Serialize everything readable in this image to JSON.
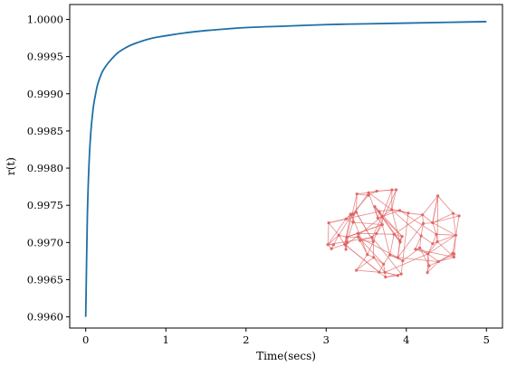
{
  "chart_data": {
    "type": "line",
    "title": "",
    "xlabel": "Time(secs)",
    "ylabel": "r(t)",
    "xlim": [
      -0.2,
      5.2
    ],
    "ylim": [
      0.99585,
      1.0002
    ],
    "x_ticks": [
      0,
      1,
      2,
      3,
      4,
      5
    ],
    "x_tick_labels": [
      "0",
      "1",
      "2",
      "3",
      "4",
      "5"
    ],
    "y_ticks": [
      0.996,
      0.9965,
      0.997,
      0.9975,
      0.998,
      0.9985,
      0.999,
      0.9995,
      1.0
    ],
    "y_tick_labels": [
      "0.9960",
      "0.9965",
      "0.9970",
      "0.9975",
      "0.9980",
      "0.9985",
      "0.9990",
      "0.9995",
      "1.0000"
    ],
    "grid": false,
    "series": [
      {
        "color": "#1f6fa8",
        "x": [
          0.0,
          0.02,
          0.04,
          0.06,
          0.08,
          0.1,
          0.12,
          0.15,
          0.2,
          0.25,
          0.3,
          0.4,
          0.5,
          0.6,
          0.8,
          1.0,
          1.25,
          1.5,
          2.0,
          2.5,
          3.0,
          3.5,
          4.0,
          4.5,
          5.0
        ],
        "y": [
          0.996,
          0.99734,
          0.99803,
          0.99843,
          0.99868,
          0.99886,
          0.99898,
          0.99913,
          0.99928,
          0.99937,
          0.99944,
          0.99955,
          0.99962,
          0.99967,
          0.99974,
          0.99978,
          0.99982,
          0.99985,
          0.99989,
          0.99991,
          0.99993,
          0.99994,
          0.99995,
          0.99996,
          0.99997
        ]
      }
    ]
  },
  "inset": {
    "icon": "network-graph-icon",
    "color": "#e06060"
  }
}
